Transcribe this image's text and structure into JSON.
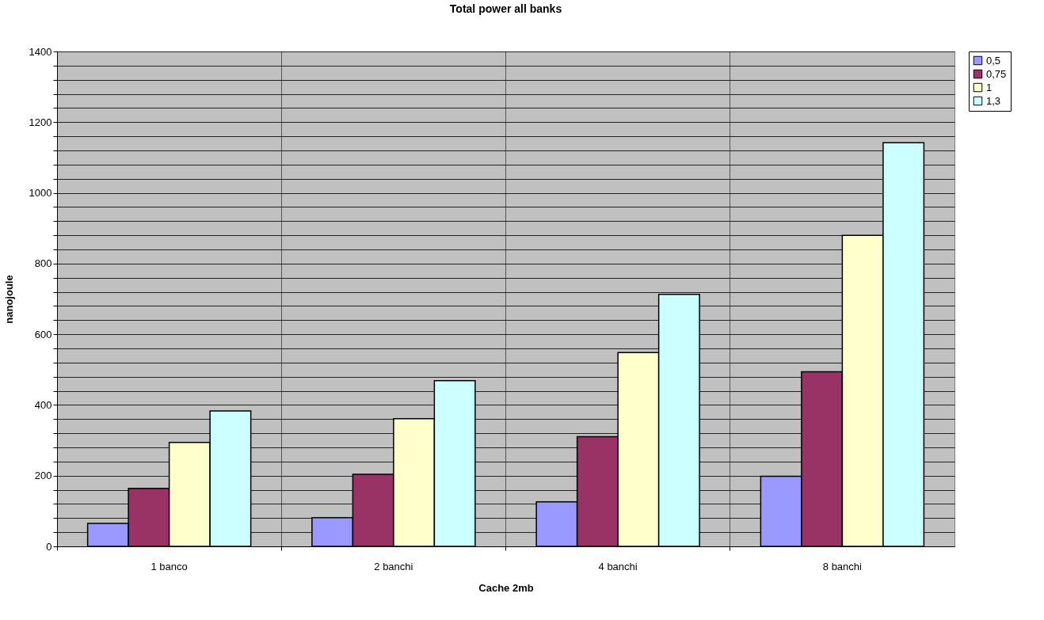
{
  "chart_data": {
    "type": "bar",
    "title": "Total power all banks",
    "xlabel": "Cache 2mb",
    "ylabel": "nanojoule",
    "categories": [
      "1 banco",
      "2 banchi",
      "4 banchi",
      "8 banchi"
    ],
    "series": [
      {
        "name": "0,5",
        "color": "#9999ff",
        "values": [
          65,
          81,
          126,
          198
        ]
      },
      {
        "name": "0,75",
        "color": "#993366",
        "values": [
          164,
          204,
          310,
          494
        ]
      },
      {
        "name": "1",
        "color": "#ffffcc",
        "values": [
          294,
          361,
          548,
          880
        ]
      },
      {
        "name": "1,3",
        "color": "#ccffff",
        "values": [
          383,
          469,
          713,
          1142
        ]
      }
    ],
    "ylim": [
      0,
      1400
    ],
    "yticks": [
      0,
      {
        "value": 40,
        "label": null
      },
      {
        "value": 80,
        "label": null
      },
      {
        "value": 120,
        "label": null
      },
      {
        "value": 160,
        "label": null
      },
      200,
      {
        "value": 240,
        "label": null
      },
      {
        "value": 280,
        "label": null
      },
      {
        "value": 320,
        "label": null
      },
      {
        "value": 360,
        "label": null
      },
      400,
      {
        "value": 440,
        "label": null
      },
      {
        "value": 480,
        "label": null
      },
      {
        "value": 520,
        "label": null
      },
      {
        "value": 560,
        "label": null
      },
      600,
      {
        "value": 640,
        "label": null
      },
      {
        "value": 680,
        "label": null
      },
      {
        "value": 720,
        "label": null
      },
      {
        "value": 760,
        "label": null
      },
      800,
      {
        "value": 840,
        "label": null
      },
      {
        "value": 880,
        "label": null
      },
      {
        "value": 920,
        "label": null
      },
      {
        "value": 960,
        "label": null
      },
      1000,
      {
        "value": 1040,
        "label": null
      },
      {
        "value": 1080,
        "label": null
      },
      {
        "value": 1120,
        "label": null
      },
      {
        "value": 1160,
        "label": null
      },
      1200,
      {
        "value": 1240,
        "label": null
      },
      {
        "value": 1280,
        "label": null
      },
      {
        "value": 1320,
        "label": null
      },
      {
        "value": 1360,
        "label": null
      },
      1400
    ],
    "grid": true,
    "legend": "right"
  }
}
